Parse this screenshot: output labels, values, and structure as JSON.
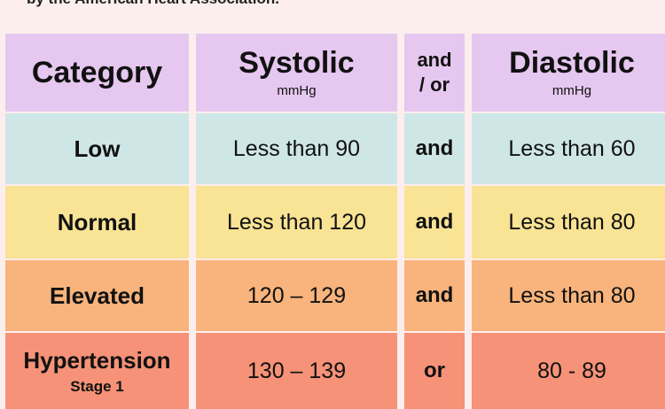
{
  "caption": "by the American Heart Association.",
  "header": {
    "category": "Category",
    "systolic": "Systolic",
    "systolic_unit": "mmHg",
    "andor_line1": "and",
    "andor_line2": "/ or",
    "diastolic": "Diastolic",
    "diastolic_unit": "mmHg"
  },
  "rows": [
    {
      "category": "Low",
      "systolic": "Less than 90",
      "conj": "and",
      "diastolic": "Less than 60"
    },
    {
      "category": "Normal",
      "systolic": "Less than 120",
      "conj": "and",
      "diastolic": "Less than 80"
    },
    {
      "category": "Elevated",
      "systolic": "120 – 129",
      "conj": "and",
      "diastolic": "Less than 80"
    },
    {
      "category": "Hypertension",
      "category_sub": "Stage 1",
      "systolic": "130 – 139",
      "conj": "or",
      "diastolic": "80 - 89"
    }
  ],
  "colors": {
    "background": "#fdeeee",
    "header": "#e5c7ef",
    "low": "#cfe6e6",
    "normal": "#f9e394",
    "elevated": "#f8b47c",
    "hypertension_stage1": "#f59277",
    "cuff": "#c98ee0"
  },
  "illustration": "blood-pressure-cuff-icon"
}
